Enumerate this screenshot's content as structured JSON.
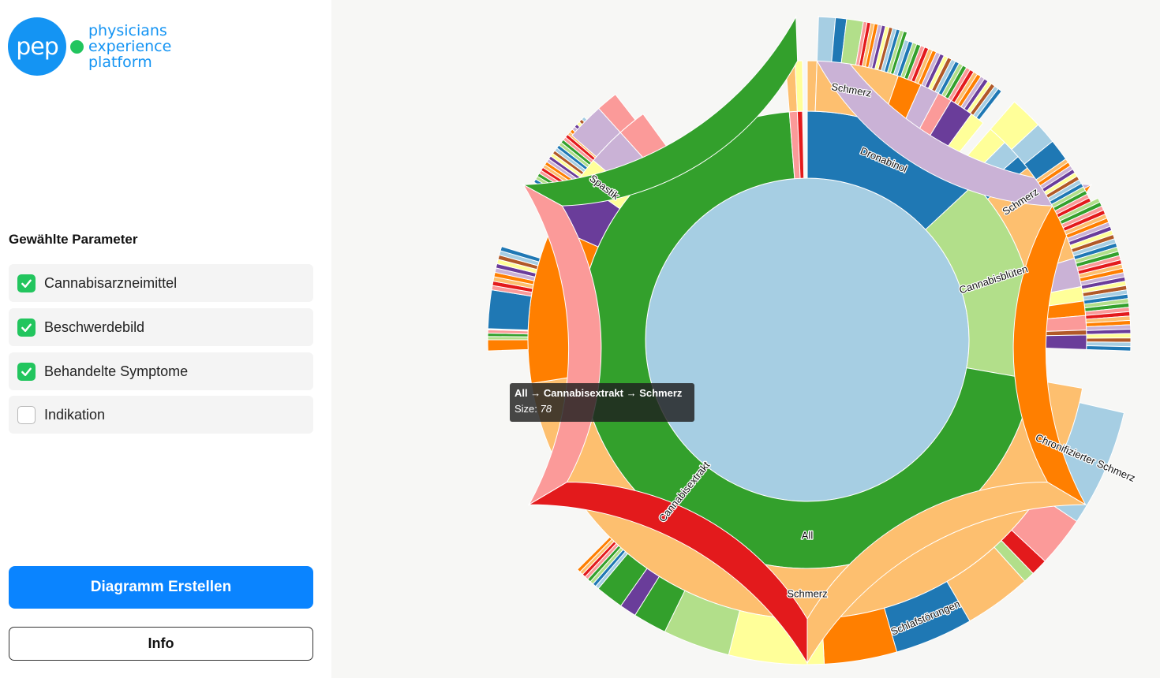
{
  "brand": {
    "logo_mark": "pep",
    "name_lines": [
      "physicians",
      "experience",
      "platform"
    ],
    "color": "#1494f3",
    "dot_color": "#22c55e"
  },
  "sidebar": {
    "title": "Gewählte Parameter",
    "params": [
      {
        "label": "Cannabisarzneimittel",
        "checked": true
      },
      {
        "label": "Beschwerdebild",
        "checked": true
      },
      {
        "label": "Behandelte Symptome",
        "checked": true
      },
      {
        "label": "Indikation",
        "checked": false
      }
    ],
    "create_button": "Diagramm Erstellen",
    "info_button": "Info"
  },
  "chart_data": {
    "type": "sunburst",
    "root": {
      "name": "All",
      "color": "#a6cee3"
    },
    "level1": [
      {
        "name": "Cannabisextrakt",
        "color": "#33a02c",
        "share": 0.74
      },
      {
        "name": "Dronabinol",
        "color": "#1f78b4",
        "share": 0.104
      },
      {
        "name": "Cannabisblüten",
        "color": "#b2df8a",
        "share": 0.147
      }
    ],
    "labeled_segments": [
      "Schmerz",
      "Schmerz",
      "Schmerz",
      "Spastik",
      "Chronifizierter Schmerz",
      "Schlafstörungen"
    ],
    "palette": [
      "#a6cee3",
      "#1f78b4",
      "#b2df8a",
      "#33a02c",
      "#fb9a99",
      "#e31a1c",
      "#fdbf6f",
      "#ff7f00",
      "#cab2d6",
      "#6a3d9a",
      "#ffff99",
      "#b15928"
    ]
  },
  "tooltip": {
    "path": "All → Cannabisextrakt → Schmerz",
    "size_label": "Size:",
    "size_value": "78"
  }
}
